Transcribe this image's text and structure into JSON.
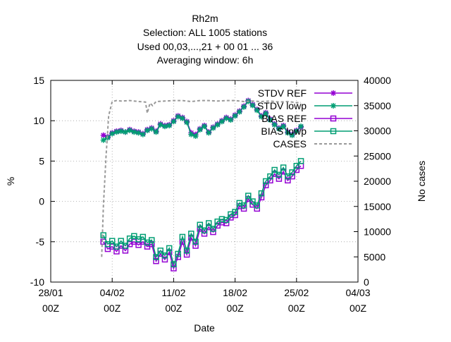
{
  "chart_data": {
    "type": "line",
    "title_lines": [
      "Rh2m",
      "Selection: ALL   1005 stations",
      "Used  00,03,...,21  + 00 01 ... 36",
      "Averaging window:  6h"
    ],
    "xlabel": "Date",
    "ylabel_left": "%",
    "ylabel_right": "No cases",
    "x_tick_labels": [
      [
        "28/01",
        "00Z"
      ],
      [
        "04/02",
        "00Z"
      ],
      [
        "11/02",
        "00Z"
      ],
      [
        "18/02",
        "00Z"
      ],
      [
        "25/02",
        "00Z"
      ],
      [
        "04/03",
        "00Z"
      ]
    ],
    "x_range_days": [
      0,
      35
    ],
    "ylim_left": [
      -10,
      15
    ],
    "y_ticks_left": [
      "-10",
      "-5",
      "0",
      "5",
      "10",
      "15"
    ],
    "ylim_right": [
      0,
      40000
    ],
    "y_ticks_right": [
      "0",
      "5000",
      "10000",
      "15000",
      "20000",
      "25000",
      "30000",
      "35000",
      "40000"
    ],
    "grid": true,
    "legend_position": "top-right",
    "colors": {
      "ref": "#9400d3",
      "lowp": "#009e73",
      "cases": "#999999"
    },
    "series": [
      {
        "name": "STDV REF",
        "axis": "left",
        "marker": "star",
        "x": [
          6.0,
          6.5,
          7.0,
          7.5,
          8.0,
          8.5,
          9.0,
          9.5,
          10.0,
          10.5,
          11.0,
          11.5,
          12.0,
          12.5,
          13.0,
          13.5,
          14.0,
          14.5,
          15.0,
          15.5,
          16.0,
          16.5,
          17.0,
          17.5,
          18.0,
          18.5,
          19.0,
          19.5,
          20.0,
          20.5,
          21.0,
          21.5,
          22.0,
          22.5,
          23.0,
          23.5,
          24.0,
          24.5,
          25.0,
          25.5,
          26.0,
          26.5,
          27.0,
          27.5,
          28.0,
          28.5
        ],
        "y": [
          8.2,
          8.0,
          8.5,
          8.7,
          8.8,
          8.6,
          8.9,
          8.7,
          8.6,
          8.4,
          8.9,
          9.1,
          8.7,
          9.6,
          9.4,
          9.5,
          10.0,
          10.6,
          10.4,
          9.9,
          8.5,
          8.3,
          9.0,
          9.4,
          8.6,
          9.2,
          9.6,
          10.0,
          10.4,
          10.2,
          10.7,
          11.2,
          11.8,
          12.5,
          12.0,
          11.4,
          10.6,
          11.0,
          10.2,
          9.6,
          9.1,
          9.4,
          8.6,
          8.3,
          8.8,
          9.2
        ]
      },
      {
        "name": "STDV lowp",
        "axis": "left",
        "marker": "star",
        "x": [
          6.0,
          6.5,
          7.0,
          7.5,
          8.0,
          8.5,
          9.0,
          9.5,
          10.0,
          10.5,
          11.0,
          11.5,
          12.0,
          12.5,
          13.0,
          13.5,
          14.0,
          14.5,
          15.0,
          15.5,
          16.0,
          16.5,
          17.0,
          17.5,
          18.0,
          18.5,
          19.0,
          19.5,
          20.0,
          20.5,
          21.0,
          21.5,
          22.0,
          22.5,
          23.0,
          23.5,
          24.0,
          24.5,
          25.0,
          25.5,
          26.0,
          26.5,
          27.0,
          27.5,
          28.0,
          28.5
        ],
        "y": [
          7.6,
          7.9,
          8.4,
          8.6,
          8.7,
          8.6,
          8.8,
          8.6,
          8.5,
          8.3,
          8.8,
          9.0,
          8.6,
          9.5,
          9.3,
          9.4,
          9.9,
          10.5,
          10.3,
          9.8,
          8.3,
          8.1,
          8.9,
          9.3,
          8.5,
          9.1,
          9.5,
          9.9,
          10.3,
          10.1,
          10.6,
          11.1,
          11.7,
          12.4,
          11.9,
          11.3,
          10.5,
          10.9,
          10.1,
          9.5,
          9.0,
          9.3,
          8.5,
          8.2,
          8.7,
          9.3
        ]
      },
      {
        "name": "BIAS REF",
        "axis": "left",
        "marker": "square",
        "x": [
          6.0,
          6.5,
          7.0,
          7.5,
          8.0,
          8.5,
          9.0,
          9.5,
          10.0,
          10.5,
          11.0,
          11.5,
          12.0,
          12.5,
          13.0,
          13.5,
          14.0,
          14.5,
          15.0,
          15.5,
          16.0,
          16.5,
          17.0,
          17.5,
          18.0,
          18.5,
          19.0,
          19.5,
          20.0,
          20.5,
          21.0,
          21.5,
          22.0,
          22.5,
          23.0,
          23.5,
          24.0,
          24.5,
          25.0,
          25.5,
          26.0,
          26.5,
          27.0,
          27.5,
          28.0,
          28.5
        ],
        "y": [
          -5.0,
          -5.9,
          -5.6,
          -6.2,
          -5.5,
          -6.1,
          -5.3,
          -5.0,
          -5.4,
          -5.0,
          -5.6,
          -5.3,
          -7.4,
          -6.5,
          -7.2,
          -6.3,
          -8.3,
          -6.9,
          -5.0,
          -6.6,
          -4.5,
          -5.5,
          -3.4,
          -4.0,
          -3.2,
          -3.8,
          -3.0,
          -2.6,
          -2.7,
          -2.0,
          -1.7,
          -0.6,
          -0.9,
          0.3,
          -0.4,
          -0.9,
          0.5,
          2.0,
          2.6,
          3.4,
          2.8,
          3.7,
          2.6,
          3.1,
          3.9,
          4.4
        ]
      },
      {
        "name": "BIAS lowp",
        "axis": "left",
        "marker": "square",
        "x": [
          6.0,
          6.5,
          7.0,
          7.5,
          8.0,
          8.5,
          9.0,
          9.5,
          10.0,
          10.5,
          11.0,
          11.5,
          12.0,
          12.5,
          13.0,
          13.5,
          14.0,
          14.5,
          15.0,
          15.5,
          16.0,
          16.5,
          17.0,
          17.5,
          18.0,
          18.5,
          19.0,
          19.5,
          20.0,
          20.5,
          21.0,
          21.5,
          22.0,
          22.5,
          23.0,
          23.5,
          24.0,
          24.5,
          25.0,
          25.5,
          26.0,
          26.5,
          27.0,
          27.5,
          28.0,
          28.5
        ],
        "y": [
          -4.2,
          -5.3,
          -4.9,
          -5.6,
          -4.9,
          -5.5,
          -4.6,
          -4.3,
          -4.7,
          -4.4,
          -5.1,
          -4.8,
          -6.9,
          -6.1,
          -6.7,
          -5.8,
          -7.8,
          -6.5,
          -4.4,
          -6.1,
          -4.0,
          -5.0,
          -2.9,
          -3.6,
          -2.7,
          -3.4,
          -2.5,
          -2.2,
          -2.3,
          -1.6,
          -1.3,
          -0.2,
          -0.5,
          0.7,
          0.0,
          -0.5,
          1.0,
          2.5,
          3.1,
          3.9,
          3.3,
          4.2,
          3.1,
          3.6,
          4.4,
          5.0
        ]
      },
      {
        "name": "CASES",
        "axis": "right",
        "marker": "none",
        "dashed": true,
        "x": [
          5.8,
          6.0,
          6.3,
          6.6,
          7.0,
          7.5,
          8.0,
          9.0,
          10.0,
          10.8,
          11.0,
          11.3,
          11.6,
          12.0,
          13.0,
          14.0,
          15.0,
          16.0,
          17.0,
          18.0,
          19.0,
          20.0,
          21.0,
          22.0,
          23.0,
          24.0,
          25.0,
          26.0,
          27.0,
          28.0,
          28.5
        ],
        "y": [
          5000,
          15000,
          25000,
          33000,
          35800,
          36000,
          35900,
          36000,
          35800,
          35700,
          33500,
          35500,
          35000,
          35800,
          35900,
          36000,
          36000,
          35800,
          36000,
          36000,
          35900,
          36000,
          36000,
          35800,
          35900,
          35800,
          35900,
          35700,
          35800,
          35600,
          35600
        ]
      }
    ]
  }
}
